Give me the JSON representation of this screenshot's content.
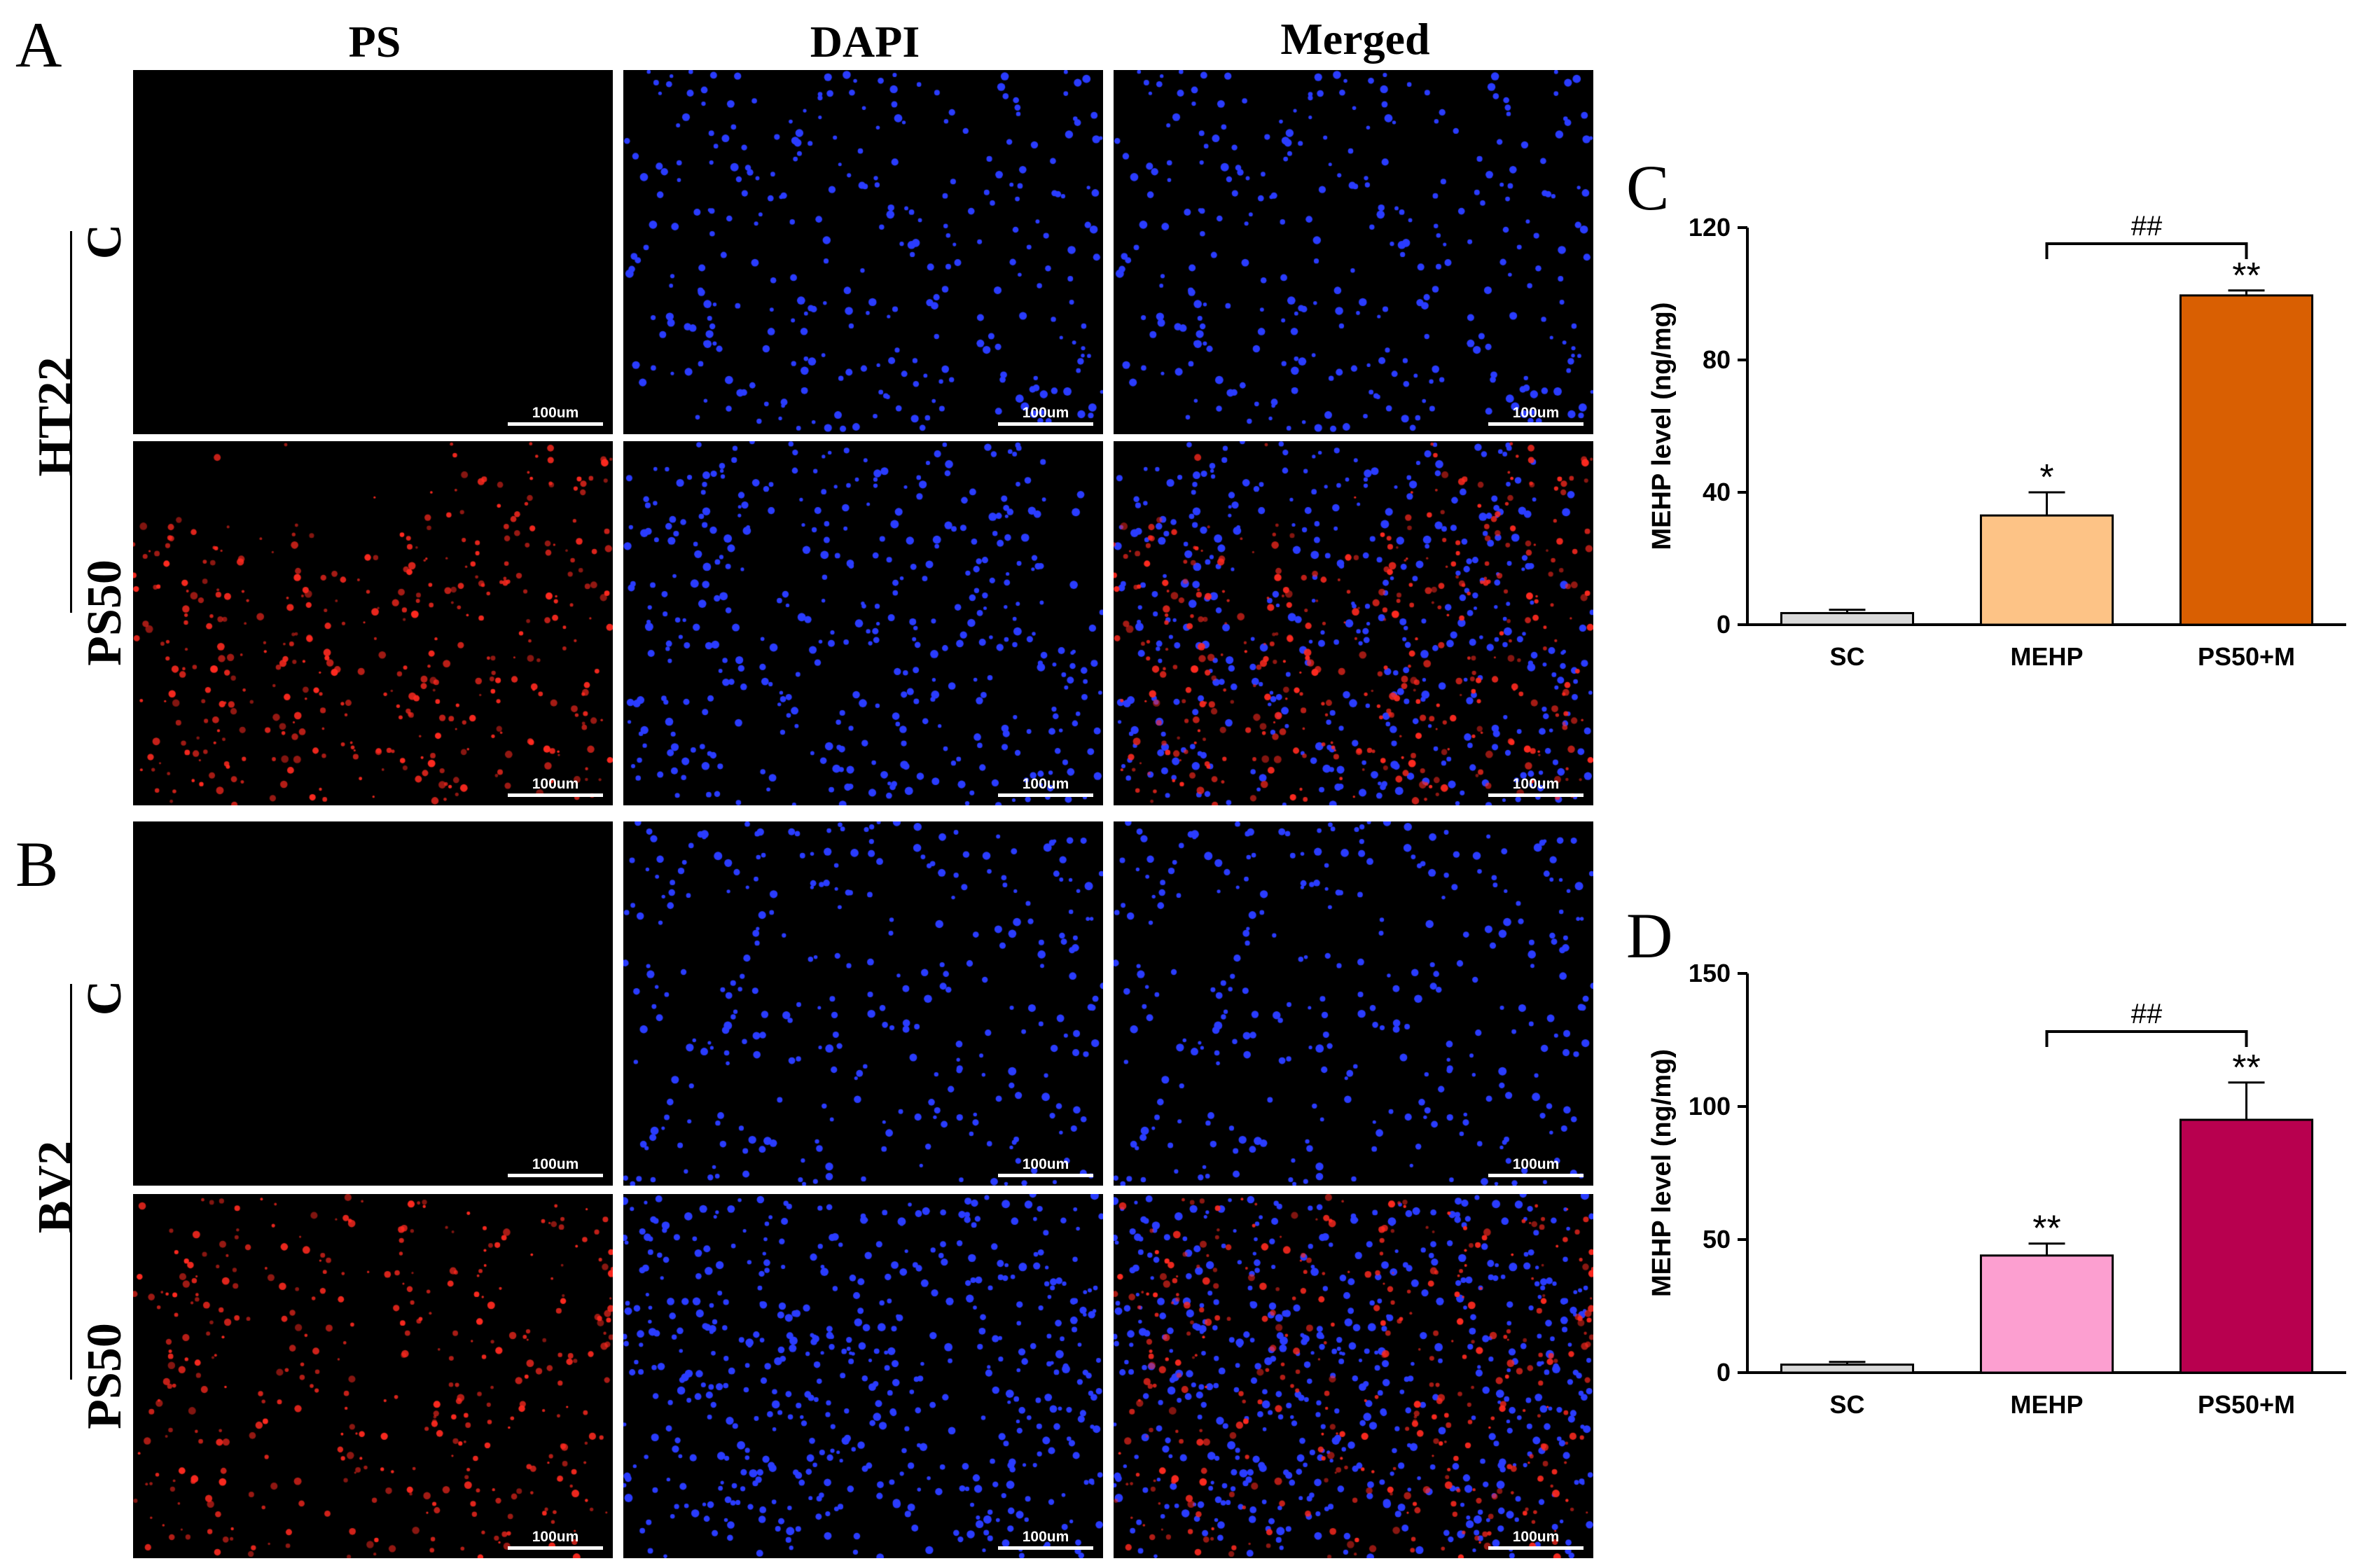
{
  "figure": {
    "panel_labels": {
      "a": "A",
      "b": "B",
      "c": "C",
      "d": "D"
    },
    "column_headers": [
      "PS",
      "DAPI",
      "Merged"
    ],
    "groups": [
      {
        "cell_line": "HT22",
        "rows": [
          "C",
          "PS50"
        ]
      },
      {
        "cell_line": "BV2",
        "rows": [
          "C",
          "PS50"
        ]
      }
    ],
    "scale_bar_label": "100um"
  },
  "colors": {
    "ps_stain": "#ff2a20",
    "dapi_stain": "#2a3cff",
    "c_sc": "#d9d9d9",
    "c_mehp": "#fdc386",
    "c_ps50m": "#d95f02",
    "d_sc": "#d9d9d9",
    "d_mehp": "#fc9fd0",
    "d_ps50m": "#b8004f"
  },
  "chart_data": [
    {
      "panel": "C",
      "type": "bar",
      "categories": [
        "SC",
        "MEHP",
        "PS50+M"
      ],
      "values": [
        3.5,
        33,
        99.5
      ],
      "errors": [
        1,
        7,
        1.5
      ],
      "significance": [
        "",
        "*",
        "**"
      ],
      "bracket": {
        "from": "MEHP",
        "to": "PS50+M",
        "label": "##"
      },
      "ylabel": "MEHP level (ng/mg)",
      "ylim": [
        0,
        120
      ],
      "yticks": [
        0,
        40,
        80,
        120
      ],
      "colors": [
        "#d9d9d9",
        "#fdc386",
        "#d95f02"
      ]
    },
    {
      "panel": "D",
      "type": "bar",
      "categories": [
        "SC",
        "MEHP",
        "PS50+M"
      ],
      "values": [
        3,
        44,
        95
      ],
      "errors": [
        1,
        4.5,
        14
      ],
      "significance": [
        "",
        "**",
        "**"
      ],
      "bracket": {
        "from": "MEHP",
        "to": "PS50+M",
        "label": "##"
      },
      "ylabel": "MEHP level (ng/mg)",
      "ylim": [
        0,
        150
      ],
      "yticks": [
        0,
        50,
        100,
        150
      ],
      "colors": [
        "#d9d9d9",
        "#fc9fd0",
        "#b8004f"
      ]
    }
  ]
}
